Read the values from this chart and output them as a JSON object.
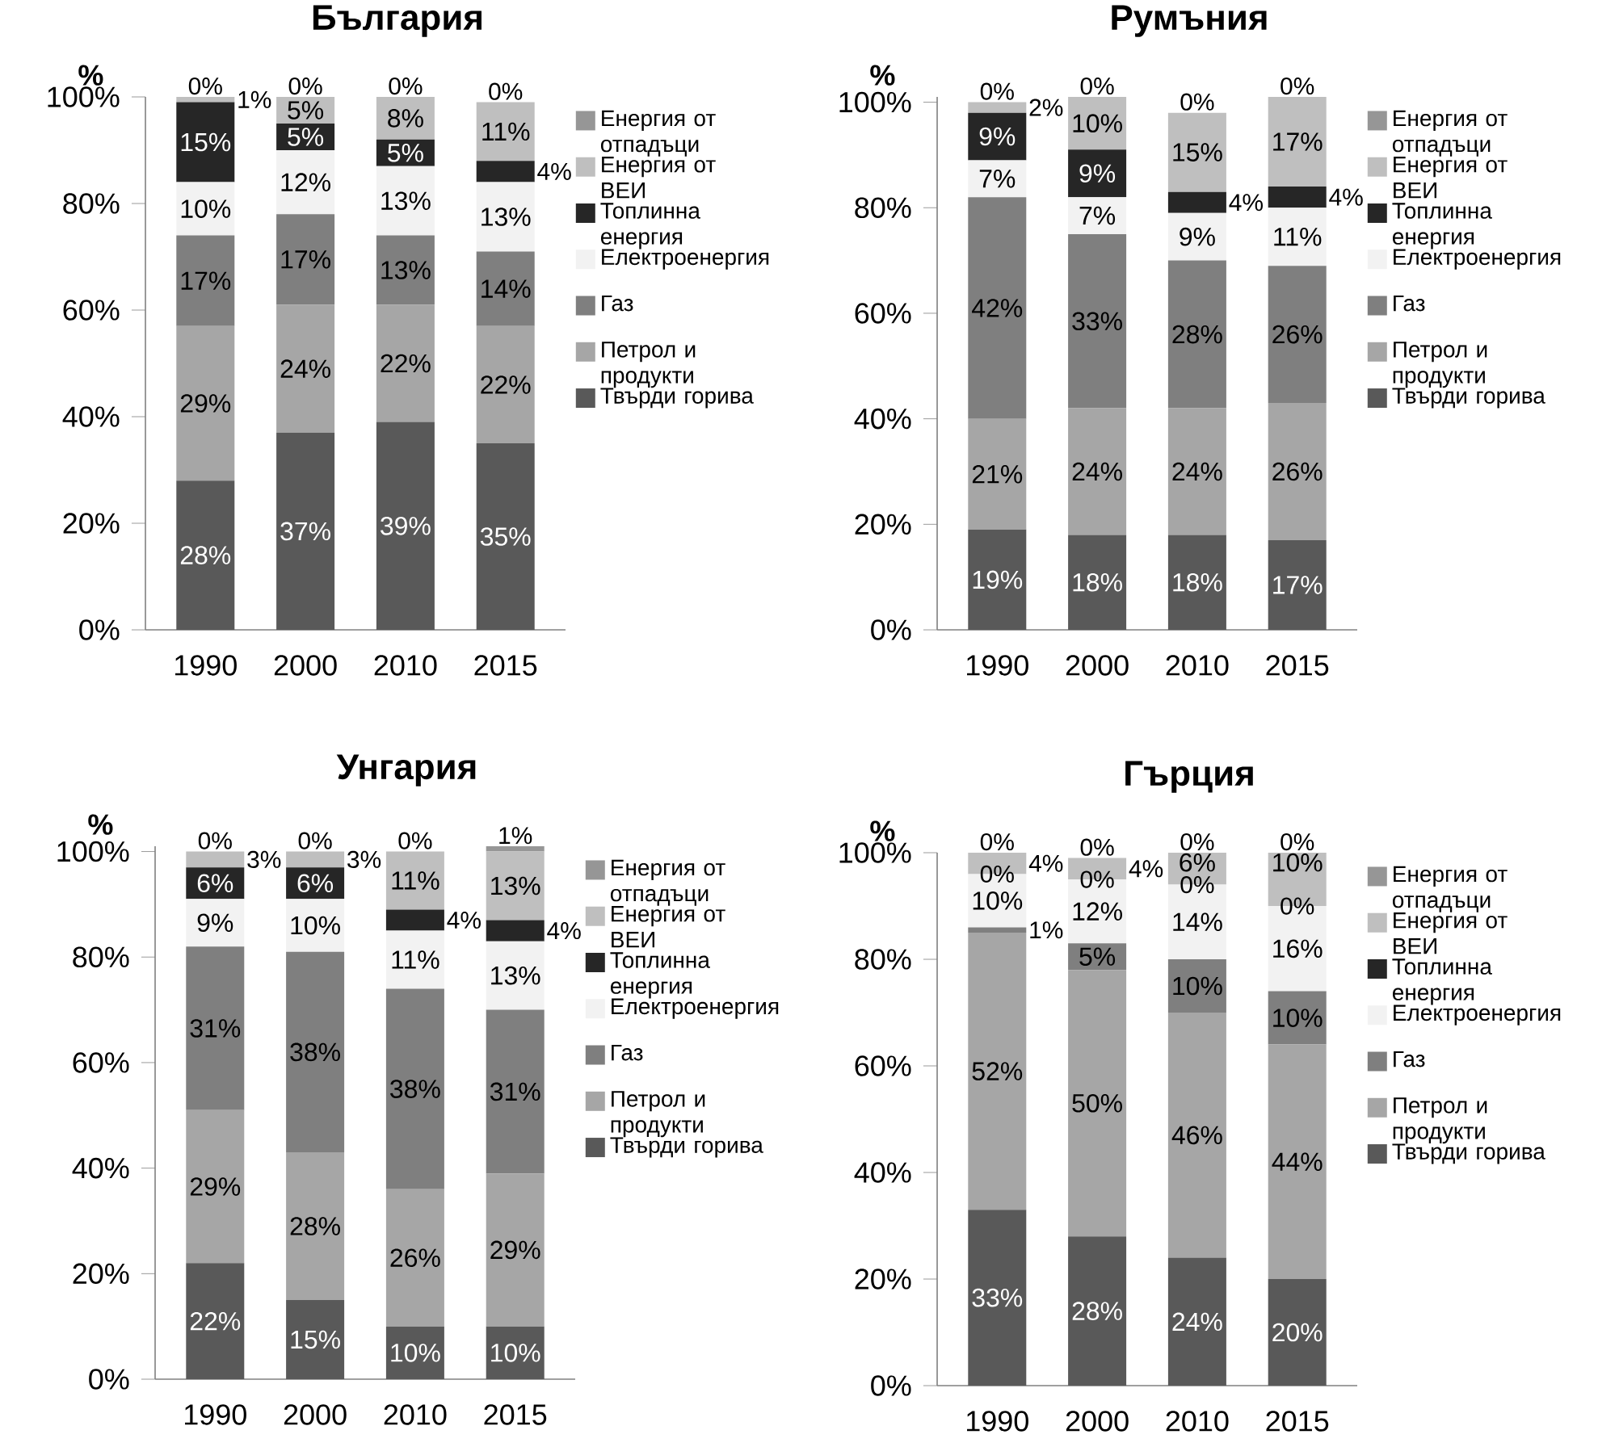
{
  "chart_data": [
    {
      "type": "bar",
      "stacked": true,
      "title": "България",
      "ylabel": "%",
      "categories": [
        "1990",
        "2000",
        "2010",
        "2015"
      ],
      "ylim": [
        0,
        100
      ],
      "yticks": [
        {
          "value": 0,
          "label": "0%"
        },
        {
          "value": 20,
          "label": "20%"
        },
        {
          "value": 40,
          "label": "40%"
        },
        {
          "value": 60,
          "label": "60%"
        },
        {
          "value": 80,
          "label": "80%"
        },
        {
          "value": 100,
          "label": "100%"
        }
      ],
      "legend": "right",
      "series": [
        {
          "name": "Твърди горива",
          "color": "#595959",
          "values": [
            28,
            37,
            39,
            35
          ],
          "value_labels": [
            "28%",
            "37%",
            "39%",
            "35%"
          ]
        },
        {
          "name": "Петрол и продукти",
          "color": "#a6a6a6",
          "values": [
            29,
            24,
            22,
            22
          ],
          "value_labels": [
            "29%",
            "24%",
            "22%",
            "22%"
          ]
        },
        {
          "name": "Газ",
          "color": "#7f7f7f",
          "values": [
            17,
            17,
            13,
            14
          ],
          "value_labels": [
            "17%",
            "17%",
            "13%",
            "14%"
          ]
        },
        {
          "name": "Електроенергия",
          "color": "#f2f2f2",
          "values": [
            10,
            12,
            13,
            13
          ],
          "value_labels": [
            "10%",
            "12%",
            "13%",
            "13%"
          ]
        },
        {
          "name": "Топлинна енергия",
          "color": "#262626",
          "values": [
            15,
            5,
            5,
            4
          ],
          "value_labels": [
            "15%",
            "5%",
            "5%",
            "4%"
          ]
        },
        {
          "name": "Енергия от ВЕИ",
          "color": "#bfbfbf",
          "values": [
            1,
            5,
            8,
            11
          ],
          "value_labels": [
            "1%",
            "5%",
            "8%",
            "11%"
          ]
        },
        {
          "name": "Енергия от отпадъци",
          "color": "#969696",
          "values": [
            0,
            0,
            0,
            0
          ],
          "value_labels": [
            "0%",
            "0%",
            "0%",
            "0%"
          ]
        }
      ]
    },
    {
      "type": "bar",
      "stacked": true,
      "title": "Румъния",
      "ylabel": "%",
      "categories": [
        "1990",
        "2000",
        "2010",
        "2015"
      ],
      "ylim": [
        0,
        101
      ],
      "yticks": [
        {
          "value": 0,
          "label": "0%"
        },
        {
          "value": 20,
          "label": "20%"
        },
        {
          "value": 40,
          "label": "40%"
        },
        {
          "value": 60,
          "label": "60%"
        },
        {
          "value": 80,
          "label": "80%"
        },
        {
          "value": 100,
          "label": "100%"
        }
      ],
      "legend": "right",
      "series": [
        {
          "name": "Твърди горива",
          "color": "#595959",
          "values": [
            19,
            18,
            18,
            17
          ],
          "value_labels": [
            "19%",
            "18%",
            "18%",
            "17%"
          ]
        },
        {
          "name": "Петрол и продукти",
          "color": "#a6a6a6",
          "values": [
            21,
            24,
            24,
            26
          ],
          "value_labels": [
            "21%",
            "24%",
            "24%",
            "26%"
          ]
        },
        {
          "name": "Газ",
          "color": "#7f7f7f",
          "values": [
            42,
            33,
            28,
            26
          ],
          "value_labels": [
            "42%",
            "33%",
            "28%",
            "26%"
          ]
        },
        {
          "name": "Електроенергия",
          "color": "#f2f2f2",
          "values": [
            7,
            7,
            9,
            11
          ],
          "value_labels": [
            "7%",
            "7%",
            "9%",
            "11%"
          ]
        },
        {
          "name": "Топлинна енергия",
          "color": "#262626",
          "values": [
            9,
            9,
            4,
            4
          ],
          "value_labels": [
            "9%",
            "9%",
            "4%",
            "4%"
          ]
        },
        {
          "name": "Енергия от ВЕИ",
          "color": "#bfbfbf",
          "values": [
            2,
            10,
            15,
            17
          ],
          "value_labels": [
            "2%",
            "10%",
            "15%",
            "17%"
          ]
        },
        {
          "name": "Енергия от отпадъци",
          "color": "#969696",
          "values": [
            0,
            0,
            0,
            0
          ],
          "value_labels": [
            "0%",
            "0%",
            "0%",
            "0%"
          ]
        }
      ]
    },
    {
      "type": "bar",
      "stacked": true,
      "title": "Унгария",
      "ylabel": "%",
      "categories": [
        "1990",
        "2000",
        "2010",
        "2015"
      ],
      "ylim": [
        0,
        101
      ],
      "yticks": [
        {
          "value": 0,
          "label": "0%"
        },
        {
          "value": 20,
          "label": "20%"
        },
        {
          "value": 40,
          "label": "40%"
        },
        {
          "value": 60,
          "label": "60%"
        },
        {
          "value": 80,
          "label": "80%"
        },
        {
          "value": 100,
          "label": "100%"
        }
      ],
      "legend": "right",
      "series": [
        {
          "name": "Твърди горива",
          "color": "#595959",
          "values": [
            22,
            15,
            10,
            10
          ],
          "value_labels": [
            "22%",
            "15%",
            "10%",
            "10%"
          ]
        },
        {
          "name": "Петрол и продукти",
          "color": "#a6a6a6",
          "values": [
            29,
            28,
            26,
            29
          ],
          "value_labels": [
            "29%",
            "28%",
            "26%",
            "29%"
          ]
        },
        {
          "name": "Газ",
          "color": "#7f7f7f",
          "values": [
            31,
            38,
            38,
            31
          ],
          "value_labels": [
            "31%",
            "38%",
            "38%",
            "31%"
          ]
        },
        {
          "name": "Електроенергия",
          "color": "#f2f2f2",
          "values": [
            9,
            10,
            11,
            13
          ],
          "value_labels": [
            "9%",
            "10%",
            "11%",
            "13%"
          ]
        },
        {
          "name": "Топлинна енергия",
          "color": "#262626",
          "values": [
            6,
            6,
            4,
            4
          ],
          "value_labels": [
            "6%",
            "6%",
            "4%",
            "4%"
          ]
        },
        {
          "name": "Енергия от ВЕИ",
          "color": "#bfbfbf",
          "values": [
            3,
            3,
            11,
            13
          ],
          "value_labels": [
            "3%",
            "3%",
            "11%",
            "13%"
          ]
        },
        {
          "name": "Енергия от отпадъци",
          "color": "#969696",
          "values": [
            0,
            0,
            0,
            1
          ],
          "value_labels": [
            "0%",
            "0%",
            "0%",
            "1%"
          ]
        }
      ]
    },
    {
      "type": "bar",
      "stacked": true,
      "title": "Гърция",
      "ylabel": "%",
      "categories": [
        "1990",
        "2000",
        "2010",
        "2015"
      ],
      "ylim": [
        0,
        100
      ],
      "yticks": [
        {
          "value": 0,
          "label": "0%"
        },
        {
          "value": 20,
          "label": "20%"
        },
        {
          "value": 40,
          "label": "40%"
        },
        {
          "value": 60,
          "label": "60%"
        },
        {
          "value": 80,
          "label": "80%"
        },
        {
          "value": 100,
          "label": "100%"
        }
      ],
      "legend": "right",
      "series": [
        {
          "name": "Твърди горива",
          "color": "#595959",
          "values": [
            33,
            28,
            24,
            20
          ],
          "value_labels": [
            "33%",
            "28%",
            "24%",
            "20%"
          ]
        },
        {
          "name": "Петрол и продукти",
          "color": "#a6a6a6",
          "values": [
            52,
            50,
            46,
            44
          ],
          "value_labels": [
            "52%",
            "50%",
            "46%",
            "44%"
          ]
        },
        {
          "name": "Газ",
          "color": "#7f7f7f",
          "values": [
            1,
            5,
            10,
            10
          ],
          "value_labels": [
            "1%",
            "5%",
            "10%",
            "10%"
          ]
        },
        {
          "name": "Електроенергия",
          "color": "#f2f2f2",
          "values": [
            10,
            12,
            14,
            16
          ],
          "value_labels": [
            "10%",
            "12%",
            "14%",
            "16%"
          ]
        },
        {
          "name": "Топлинна енергия",
          "color": "#262626",
          "values": [
            0,
            0,
            0,
            0
          ],
          "value_labels": [
            "0%",
            "0%",
            "0%",
            "0%"
          ]
        },
        {
          "name": "Енергия от ВЕИ",
          "color": "#bfbfbf",
          "values": [
            4,
            4,
            6,
            10
          ],
          "value_labels": [
            "4%",
            "4%",
            "6%",
            "10%"
          ]
        },
        {
          "name": "Енергия от отпадъци",
          "color": "#969696",
          "values": [
            0,
            0,
            0,
            0
          ],
          "value_labels": [
            "0%",
            "0%",
            "0%",
            "0%"
          ]
        }
      ]
    }
  ]
}
